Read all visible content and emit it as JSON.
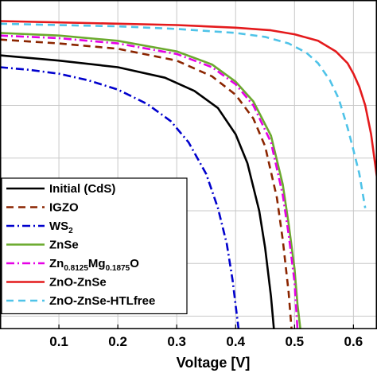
{
  "chart_data": {
    "type": "line",
    "title": "",
    "xlabel": "Voltage [V]",
    "ylabel": "",
    "xlim": [
      0.0,
      0.64
    ],
    "ylim": [
      -1.0,
      24.0
    ],
    "grid": true,
    "legend_placement": "bottom-left",
    "xticks": [
      0.1,
      0.2,
      0.3,
      0.4,
      0.5,
      0.6
    ],
    "xtick_labels": [
      "0.1",
      "0.2",
      "0.3",
      "0.4",
      "0.5",
      "0.6"
    ],
    "yticks": [
      0,
      4,
      8,
      12,
      16,
      20
    ],
    "series": [
      {
        "name": "Initial (CdS)",
        "color": "#000000",
        "dash": "solid",
        "x": [
          0.0,
          0.1,
          0.2,
          0.28,
          0.33,
          0.37,
          0.4,
          0.42,
          0.44,
          0.45,
          0.46,
          0.465
        ],
        "y": [
          19.8,
          19.4,
          18.9,
          18.1,
          17.1,
          15.8,
          13.8,
          11.6,
          8.0,
          5.2,
          1.5,
          -1.0
        ]
      },
      {
        "name": "IGZO",
        "color": "#8B2500",
        "dash": "dashed",
        "x": [
          0.0,
          0.1,
          0.2,
          0.3,
          0.36,
          0.4,
          0.43,
          0.45,
          0.47,
          0.48,
          0.49,
          0.495
        ],
        "y": [
          21.0,
          20.7,
          20.3,
          19.4,
          18.2,
          16.8,
          15.0,
          12.9,
          9.0,
          5.8,
          1.8,
          -1.0
        ]
      },
      {
        "name": "WS_2",
        "color": "#0000CD",
        "dash": "dashdot",
        "x": [
          0.0,
          0.05,
          0.1,
          0.15,
          0.2,
          0.25,
          0.29,
          0.32,
          0.35,
          0.37,
          0.385,
          0.395,
          0.4,
          0.405
        ],
        "y": [
          18.9,
          18.7,
          18.4,
          17.9,
          17.2,
          16.1,
          14.8,
          13.2,
          10.8,
          8.2,
          5.5,
          2.7,
          0.8,
          -1.0
        ]
      },
      {
        "name": "ZnSe",
        "color": "#6BAA2E",
        "dash": "solid",
        "x": [
          0.0,
          0.1,
          0.2,
          0.3,
          0.36,
          0.4,
          0.43,
          0.46,
          0.48,
          0.49,
          0.5,
          0.505,
          0.51
        ],
        "y": [
          21.5,
          21.3,
          20.9,
          20.1,
          19.1,
          17.8,
          16.3,
          13.7,
          10.0,
          7.0,
          3.6,
          0.9,
          -1.0
        ]
      },
      {
        "name": "Zn_0.8125Mg_0.1875O",
        "color": "#E600E6",
        "dash": "dashdot",
        "x": [
          0.0,
          0.1,
          0.2,
          0.3,
          0.36,
          0.4,
          0.43,
          0.46,
          0.48,
          0.49,
          0.5,
          0.505
        ],
        "y": [
          21.3,
          21.1,
          20.7,
          19.9,
          18.9,
          17.6,
          16.0,
          13.2,
          9.2,
          6.2,
          2.6,
          -1.0
        ]
      },
      {
        "name": "ZnO-ZnSe",
        "color": "#E41A1C",
        "dash": "solid",
        "x": [
          0.0,
          0.1,
          0.2,
          0.3,
          0.4,
          0.46,
          0.5,
          0.54,
          0.57,
          0.59,
          0.6,
          0.61,
          0.62,
          0.63,
          0.64
        ],
        "y": [
          22.4,
          22.3,
          22.2,
          22.1,
          21.9,
          21.7,
          21.4,
          20.9,
          20.1,
          19.2,
          18.4,
          17.4,
          16.0,
          13.8,
          10.5
        ]
      },
      {
        "name": "ZnO-ZnSe-HTLfree",
        "color": "#4FC3E8",
        "dash": "dashed",
        "x": [
          0.0,
          0.1,
          0.2,
          0.3,
          0.4,
          0.45,
          0.49,
          0.52,
          0.54,
          0.56,
          0.575,
          0.59,
          0.6,
          0.61,
          0.62
        ],
        "y": [
          22.2,
          22.1,
          22.0,
          21.8,
          21.5,
          21.2,
          20.7,
          20.0,
          19.2,
          17.9,
          16.5,
          14.3,
          12.6,
          10.8,
          8.2
        ]
      }
    ],
    "legend": [
      {
        "main": "Initial (CdS)",
        "sub": []
      },
      {
        "main": "IGZO",
        "sub": []
      },
      {
        "main": "WS",
        "sub": [
          "2"
        ]
      },
      {
        "main": "ZnSe",
        "sub": []
      },
      {
        "main": "Zn",
        "sub": [
          "0.8125",
          "Mg",
          "0.1875",
          "O"
        ]
      },
      {
        "main": "ZnO-ZnSe",
        "sub": []
      },
      {
        "main": "ZnO-ZnSe-HTLfree",
        "sub": []
      }
    ]
  }
}
